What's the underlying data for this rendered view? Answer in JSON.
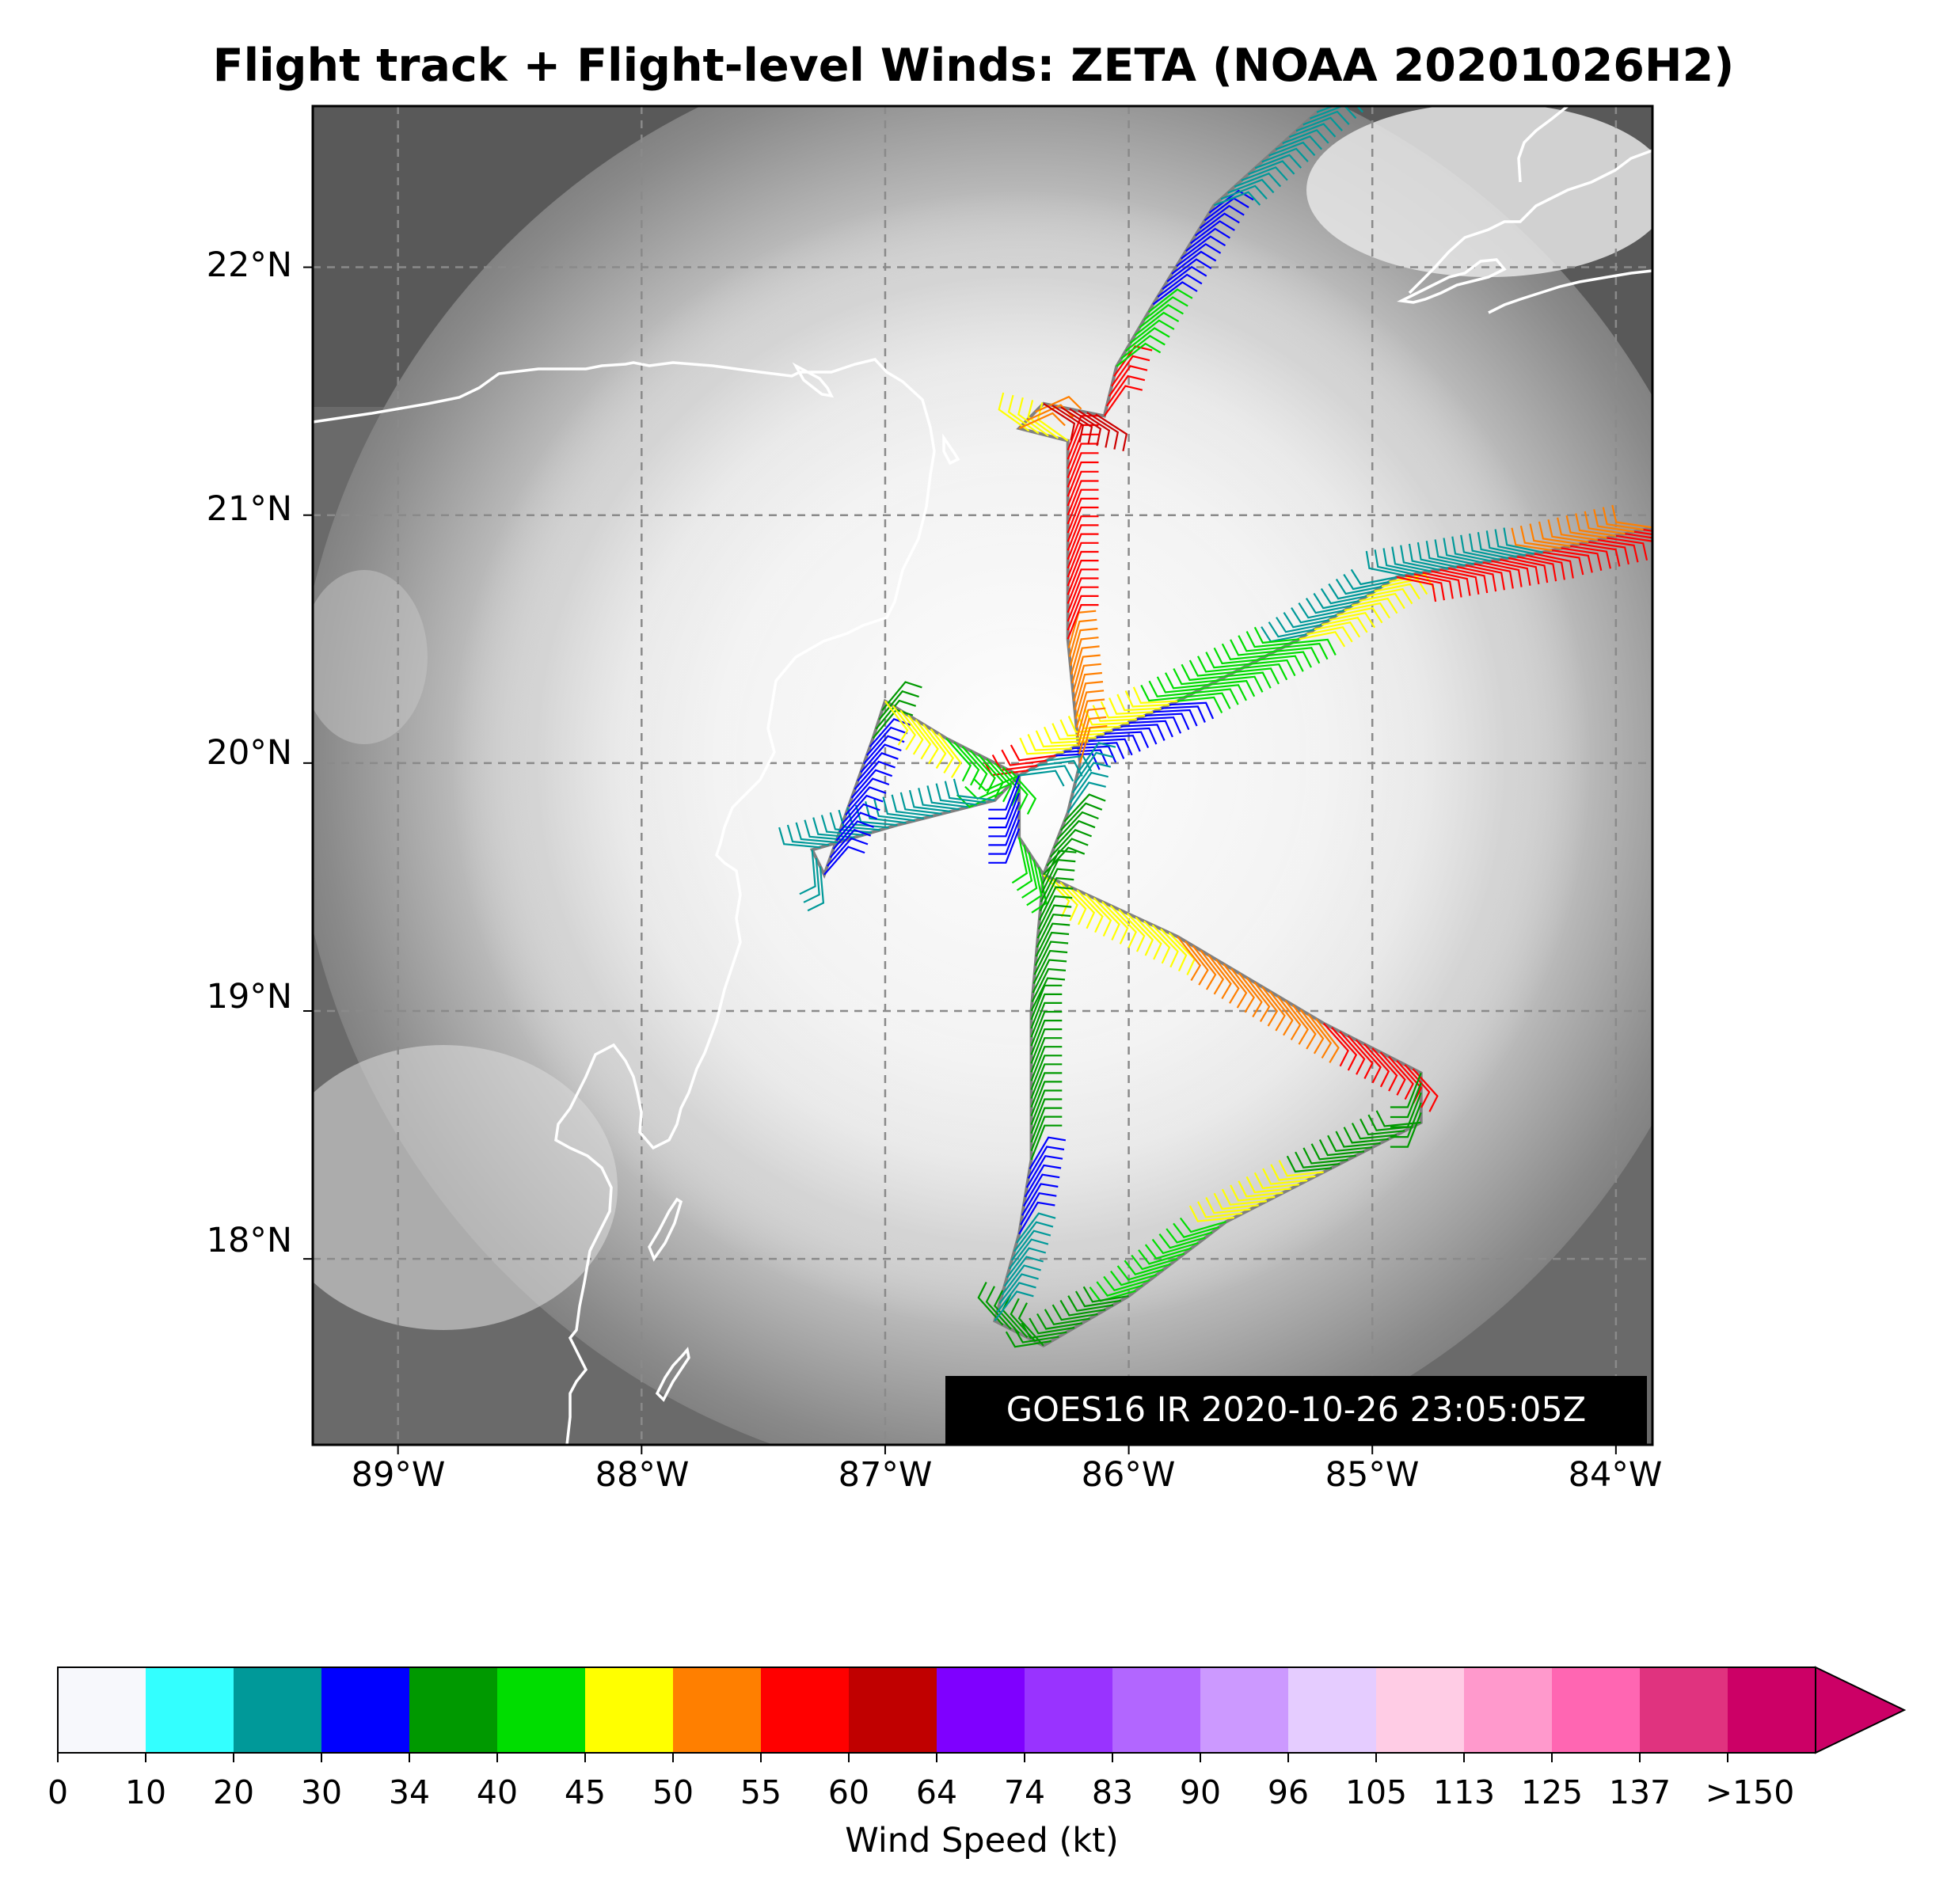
{
  "title": "Flight track + Flight-level Winds: ZETA (NOAA 20201026H2)",
  "satellite_stamp": "GOES16 IR 2020-10-26 23:05:05Z",
  "map": {
    "extent": {
      "lon_min": -89.35,
      "lon_max": -83.85,
      "lat_min": 17.25,
      "lat_max": 22.65
    },
    "lat_labels": [
      {
        "lat": 22,
        "text": "22°N"
      },
      {
        "lat": 21,
        "text": "21°N"
      },
      {
        "lat": 20,
        "text": "20°N"
      },
      {
        "lat": 19,
        "text": "19°N"
      },
      {
        "lat": 18,
        "text": "18°N"
      }
    ],
    "lon_labels": [
      {
        "lon": -89,
        "text": "89°W"
      },
      {
        "lon": -88,
        "text": "88°W"
      },
      {
        "lon": -87,
        "text": "87°W"
      },
      {
        "lon": -86,
        "text": "86°W"
      },
      {
        "lon": -85,
        "text": "85°W"
      },
      {
        "lon": -84,
        "text": "84°W"
      }
    ],
    "storm_center": {
      "lon": -86.45,
      "lat": 19.95
    },
    "flight_track": [
      [
        -86.45,
        19.95
      ],
      [
        -86.3,
        20.03
      ],
      [
        -85.8,
        20.25
      ],
      [
        -85.3,
        20.5
      ],
      [
        -84.9,
        20.75
      ],
      [
        -84.3,
        20.85
      ],
      [
        -83.85,
        20.95
      ],
      [
        -84.3,
        20.85
      ],
      [
        -84.9,
        20.75
      ],
      [
        -85.3,
        20.5
      ],
      [
        -85.8,
        20.25
      ],
      [
        -86.3,
        20.03
      ],
      [
        -86.45,
        19.95
      ],
      [
        -86.55,
        19.85
      ],
      [
        -86.95,
        19.75
      ],
      [
        -87.3,
        19.65
      ],
      [
        -87.25,
        19.55
      ],
      [
        -87.05,
        20.1
      ],
      [
        -87.0,
        20.25
      ],
      [
        -86.75,
        20.1
      ],
      [
        -86.45,
        19.95
      ],
      [
        -86.45,
        19.7
      ],
      [
        -86.35,
        19.55
      ],
      [
        -85.8,
        19.3
      ],
      [
        -85.2,
        18.95
      ],
      [
        -84.8,
        18.75
      ],
      [
        -84.8,
        18.55
      ],
      [
        -85.2,
        18.35
      ],
      [
        -85.6,
        18.15
      ],
      [
        -86.0,
        17.85
      ],
      [
        -86.35,
        17.65
      ],
      [
        -86.55,
        17.75
      ],
      [
        -86.45,
        18.1
      ],
      [
        -86.4,
        18.4
      ],
      [
        -86.4,
        19.0
      ],
      [
        -86.35,
        19.55
      ],
      [
        -86.25,
        19.8
      ],
      [
        -86.2,
        20.0
      ],
      [
        -86.25,
        20.5
      ],
      [
        -86.25,
        21.0
      ],
      [
        -86.25,
        21.3
      ],
      [
        -86.45,
        21.35
      ],
      [
        -86.35,
        21.45
      ],
      [
        -86.1,
        21.4
      ],
      [
        -86.05,
        21.6
      ],
      [
        -85.9,
        21.85
      ],
      [
        -85.65,
        22.25
      ],
      [
        -85.2,
        22.65
      ]
    ],
    "flight_track_colors": [
      "#009999",
      "#0000ff",
      "#00dd00",
      "#ffff00",
      "#ff0000",
      "#ff0000",
      "#ff7f00",
      "#009999",
      "#009999",
      "#00dd00",
      "#ffff00",
      "#ff0000",
      "#00dd00",
      "#009999",
      "#009999",
      "#009999",
      "#0000ff",
      "#009900",
      "#ffff00",
      "#00dd00",
      "#0000ff",
      "#00dd00",
      "#ffff00",
      "#ff7f00",
      "#ff0000",
      "#009900",
      "#009900",
      "#ffff00",
      "#00dd00",
      "#009900",
      "#009900",
      "#009999",
      "#0000ff",
      "#009900",
      "#009900",
      "#009900",
      "#009999",
      "#ff7f00",
      "#ff0000",
      "#ff0000",
      "#ffff00",
      "#ff7f00",
      "#cc0000",
      "#ff0000",
      "#00dd00",
      "#0000ff",
      "#009999"
    ],
    "barb_colors_note": ""
  },
  "colorbar": {
    "label": "Wind Speed (kt)",
    "ticks": [
      "0",
      "10",
      "20",
      "30",
      "34",
      "40",
      "45",
      "50",
      "55",
      "60",
      "64",
      "74",
      "83",
      "90",
      "96",
      "105",
      "113",
      "125",
      "137",
      ">150"
    ],
    "colors": [
      "#f7f8fc",
      "#33ffff",
      "#009999",
      "#0000ff",
      "#009900",
      "#00dd00",
      "#ffff00",
      "#ff7f00",
      "#ff0000",
      "#c00000",
      "#7f00ff",
      "#9933ff",
      "#b266ff",
      "#cc99ff",
      "#e5ccff",
      "#ffcce5",
      "#ff99cc",
      "#ff66b2",
      "#e0337f",
      "#cc0066"
    ],
    "extend_color": "#cc0066"
  }
}
